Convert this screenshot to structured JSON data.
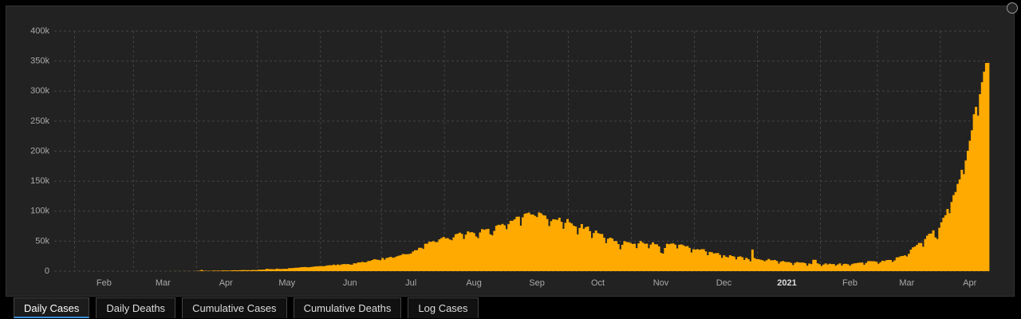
{
  "chart_data": {
    "type": "bar",
    "color": "#ffaa00",
    "grid": true,
    "ylim": [
      0,
      400000
    ],
    "yticks": [
      0,
      {
        "value": 50000,
        "label": "50k"
      },
      {
        "value": 100000,
        "label": "100k"
      },
      {
        "value": 150000,
        "label": "150k"
      },
      {
        "value": 200000,
        "label": "200k"
      },
      {
        "value": 250000,
        "label": "250k"
      },
      {
        "value": 300000,
        "label": "300k"
      },
      {
        "value": 350000,
        "label": "350k"
      },
      {
        "value": 400000,
        "label": "400k"
      }
    ],
    "categories": [
      null,
      null,
      null,
      null,
      null,
      null,
      null,
      null,
      null,
      null,
      null,
      null,
      null,
      null,
      null,
      null,
      null,
      null,
      null,
      null,
      null,
      null,
      null,
      null,
      "Feb",
      null,
      null,
      null,
      null,
      null,
      null,
      null,
      null,
      null,
      null,
      null,
      null,
      null,
      null,
      null,
      null,
      null,
      null,
      null,
      null,
      null,
      null,
      null,
      null,
      null,
      null,
      null,
      null,
      "Mar",
      null,
      null,
      null,
      null,
      null,
      null,
      null,
      null,
      null,
      null,
      null,
      null,
      null,
      null,
      null,
      null,
      null,
      null,
      null,
      null,
      null,
      null,
      null,
      null,
      null,
      null,
      null,
      null,
      null,
      null,
      "Apr",
      null,
      null,
      null,
      null,
      null,
      null,
      null,
      null,
      null,
      null,
      null,
      null,
      null,
      null,
      null,
      null,
      null,
      null,
      null,
      null,
      null,
      null,
      null,
      null,
      null,
      null,
      null,
      null,
      null,
      "May",
      null,
      null,
      null,
      null,
      null,
      null,
      null,
      null,
      null,
      null,
      null,
      null,
      null,
      null,
      null,
      null,
      null,
      null,
      null,
      null,
      null,
      null,
      null,
      null,
      null,
      null,
      null,
      null,
      null,
      null,
      "Jun",
      null,
      null,
      null,
      null,
      null,
      null,
      null,
      null,
      null,
      null,
      null,
      null,
      null,
      null,
      null,
      null,
      null,
      null,
      null,
      null,
      null,
      null,
      null,
      null,
      null,
      null,
      null,
      null,
      null,
      "Jul",
      null,
      null,
      null,
      null,
      null,
      null,
      null,
      null,
      null,
      null,
      null,
      null,
      null,
      null,
      null,
      null,
      null,
      null,
      null,
      null,
      null,
      null,
      null,
      null,
      null,
      null,
      null,
      null,
      null,
      null,
      "Aug",
      null,
      null,
      null,
      null,
      null,
      null,
      null,
      null,
      null,
      null,
      null,
      null,
      null,
      null,
      null,
      null,
      null,
      null,
      null,
      null,
      null,
      null,
      null,
      null,
      null,
      null,
      null,
      null,
      null,
      null,
      "Sep",
      null,
      null,
      null,
      null,
      null,
      null,
      null,
      null,
      null,
      null,
      null,
      null,
      null,
      null,
      null,
      null,
      null,
      null,
      null,
      null,
      null,
      null,
      null,
      null,
      null,
      null,
      null,
      null,
      null,
      "Oct",
      null,
      null,
      null,
      null,
      null,
      null,
      null,
      null,
      null,
      null,
      null,
      null,
      null,
      null,
      null,
      null,
      null,
      null,
      null,
      null,
      null,
      null,
      null,
      null,
      null,
      null,
      null,
      null,
      null,
      null,
      "Nov",
      null,
      null,
      null,
      null,
      null,
      null,
      null,
      null,
      null,
      null,
      null,
      null,
      null,
      null,
      null,
      null,
      null,
      null,
      null,
      null,
      null,
      null,
      null,
      null,
      null,
      null,
      null,
      null,
      null,
      null,
      "Dec",
      null,
      null,
      null,
      null,
      null,
      null,
      null,
      null,
      null,
      null,
      null,
      null,
      null,
      null,
      null,
      null,
      null,
      null,
      null,
      null,
      null,
      null,
      null,
      null,
      null,
      null,
      null,
      null,
      null,
      null,
      "2021",
      null,
      null,
      null,
      null,
      null,
      null,
      null,
      null,
      null,
      null,
      null,
      null,
      null,
      null,
      null,
      null,
      null,
      null,
      null,
      null,
      null,
      null,
      null,
      null,
      null,
      null,
      null,
      null,
      null,
      null,
      "Feb",
      null,
      null,
      null,
      null,
      null,
      null,
      null,
      null,
      null,
      null,
      null,
      null,
      null,
      null,
      null,
      null,
      null,
      null,
      null,
      null,
      null,
      null,
      null,
      null,
      null,
      null,
      null,
      "Mar",
      null,
      null,
      null,
      null,
      null,
      null,
      null,
      null,
      null,
      null,
      null,
      null,
      null,
      null,
      null,
      null,
      null,
      null,
      null,
      null,
      null,
      null,
      null,
      null,
      null,
      null,
      null,
      null,
      null,
      null,
      "Apr",
      null,
      null,
      null,
      null,
      null,
      null,
      null,
      null,
      null
    ],
    "values": [
      0,
      0,
      0,
      0,
      0,
      0,
      0,
      0,
      1,
      0,
      0,
      1,
      0,
      0,
      0,
      0,
      0,
      0,
      0,
      0,
      0,
      0,
      0,
      0,
      0,
      0,
      0,
      0,
      0,
      0,
      0,
      0,
      0,
      0,
      0,
      0,
      0,
      0,
      0,
      0,
      2,
      1,
      22,
      2,
      1,
      3,
      5,
      9,
      15,
      8,
      10,
      10,
      12,
      20,
      11,
      34,
      28,
      44,
      50,
      86,
      66,
      103,
      37,
      121,
      70,
      160,
      100,
      87,
      109,
      227,
      450,
      600,
      2000,
      550,
      700,
      500,
      550,
      560,
      900,
      800,
      850,
      750,
      1000,
      1200,
      1100,
      900,
      1000,
      1300,
      1500,
      1400,
      1300,
      1600,
      1700,
      1800,
      1600,
      1700,
      1500,
      1900,
      1800,
      1700,
      2400,
      2300,
      2600,
      2500,
      3900,
      3400,
      3400,
      3300,
      3100,
      4200,
      3600,
      3500,
      3700,
      3900,
      3800,
      4900,
      5000,
      5200,
      5600,
      5700,
      6000,
      6600,
      6700,
      6900,
      6500,
      6500,
      7000,
      7400,
      7900,
      8100,
      8300,
      8400,
      8200,
      8800,
      9600,
      9900,
      9800,
      10900,
      9900,
      11100,
      10100,
      11300,
      11900,
      11500,
      11900,
      11000,
      10700,
      13100,
      12900,
      14500,
      14500,
      15400,
      14800,
      14900,
      16900,
      17000,
      18600,
      19900,
      19300,
      18700,
      18200,
      21900,
      19100,
      21900,
      22800,
      23900,
      22300,
      23000,
      24600,
      25800,
      26500,
      28600,
      28200,
      28200,
      28500,
      29400,
      32700,
      34900,
      34900,
      38900,
      38900,
      37100,
      45700,
      45700,
      48900,
      49000,
      50000,
      48500,
      48500,
      53000,
      55000,
      57000,
      54700,
      55100,
      52900,
      51500,
      56300,
      61500,
      62500,
      64100,
      62100,
      53600,
      60900,
      66300,
      64500,
      65000,
      63500,
      57900,
      55000,
      64500,
      70000,
      68900,
      69900,
      70500,
      61400,
      59700,
      67100,
      75700,
      77300,
      76800,
      78700,
      76400,
      69900,
      78300,
      83900,
      83900,
      86400,
      90600,
      90800,
      75800,
      89700,
      95700,
      96500,
      97600,
      94400,
      94400,
      92100,
      90100,
      97800,
      96400,
      93300,
      92600,
      86900,
      75100,
      83300,
      86500,
      86100,
      85400,
      89000,
      82200,
      70600,
      80500,
      86800,
      81500,
      79500,
      75800,
      74400,
      61300,
      72000,
      78500,
      70500,
      73200,
      74400,
      66700,
      55300,
      63500,
      67700,
      63400,
      62200,
      61900,
      55700,
      46800,
      54000,
      55800,
      54400,
      50100,
      50100,
      45100,
      36400,
      43900,
      49900,
      48600,
      48300,
      46900,
      45200,
      45700,
      38300,
      46200,
      50200,
      47600,
      45600,
      45900,
      38100,
      44300,
      47900,
      44900,
      44700,
      41100,
      30500,
      29200,
      38600,
      45600,
      44800,
      45900,
      46200,
      44100,
      37900,
      44000,
      44500,
      43100,
      41300,
      41800,
      38800,
      31100,
      36600,
      35900,
      36600,
      35600,
      36600,
      36600,
      32900,
      26600,
      32100,
      31500,
      29400,
      30000,
      30200,
      27100,
      22100,
      26400,
      24000,
      22900,
      26600,
      25200,
      24300,
      19600,
      23900,
      24700,
      23100,
      18700,
      22300,
      20000,
      16400,
      36000,
      21800,
      20000,
      20000,
      19000,
      18200,
      16500,
      18100,
      20300,
      18100,
      18100,
      18600,
      16900,
      12600,
      15900,
      16900,
      15600,
      15100,
      15100,
      13800,
      10100,
      13800,
      15200,
      14500,
      14300,
      14300,
      13200,
      9100,
      12700,
      11700,
      18900,
      18900,
      13100,
      11600,
      8600,
      11000,
      12900,
      11000,
      12400,
      11700,
      11800,
      9100,
      11100,
      12900,
      9300,
      12100,
      12200,
      11400,
      9100,
      11600,
      12900,
      13200,
      13900,
      14200,
      14300,
      10600,
      13700,
      16700,
      16700,
      16600,
      16500,
      15500,
      12300,
      14900,
      17400,
      16800,
      18300,
      18700,
      18600,
      15400,
      17900,
      22900,
      23300,
      24900,
      25300,
      26300,
      24500,
      28900,
      35900,
      39700,
      40900,
      43800,
      47000,
      46900,
      40700,
      53500,
      59100,
      62300,
      62700,
      68000,
      56200,
      53500,
      72300,
      81500,
      89100,
      93200,
      103600,
      96600,
      115300,
      126800,
      131900,
      145400,
      152900,
      168900,
      161700,
      184400,
      200700,
      217300,
      234700,
      261500,
      273800,
      259200,
      295000,
      314800,
      332500,
      346800,
      347000
    ]
  },
  "tabs": [
    "Daily Cases",
    "Daily Deaths",
    "Cumulative Cases",
    "Cumulative Deaths",
    "Log Cases"
  ],
  "active_tab": 0
}
